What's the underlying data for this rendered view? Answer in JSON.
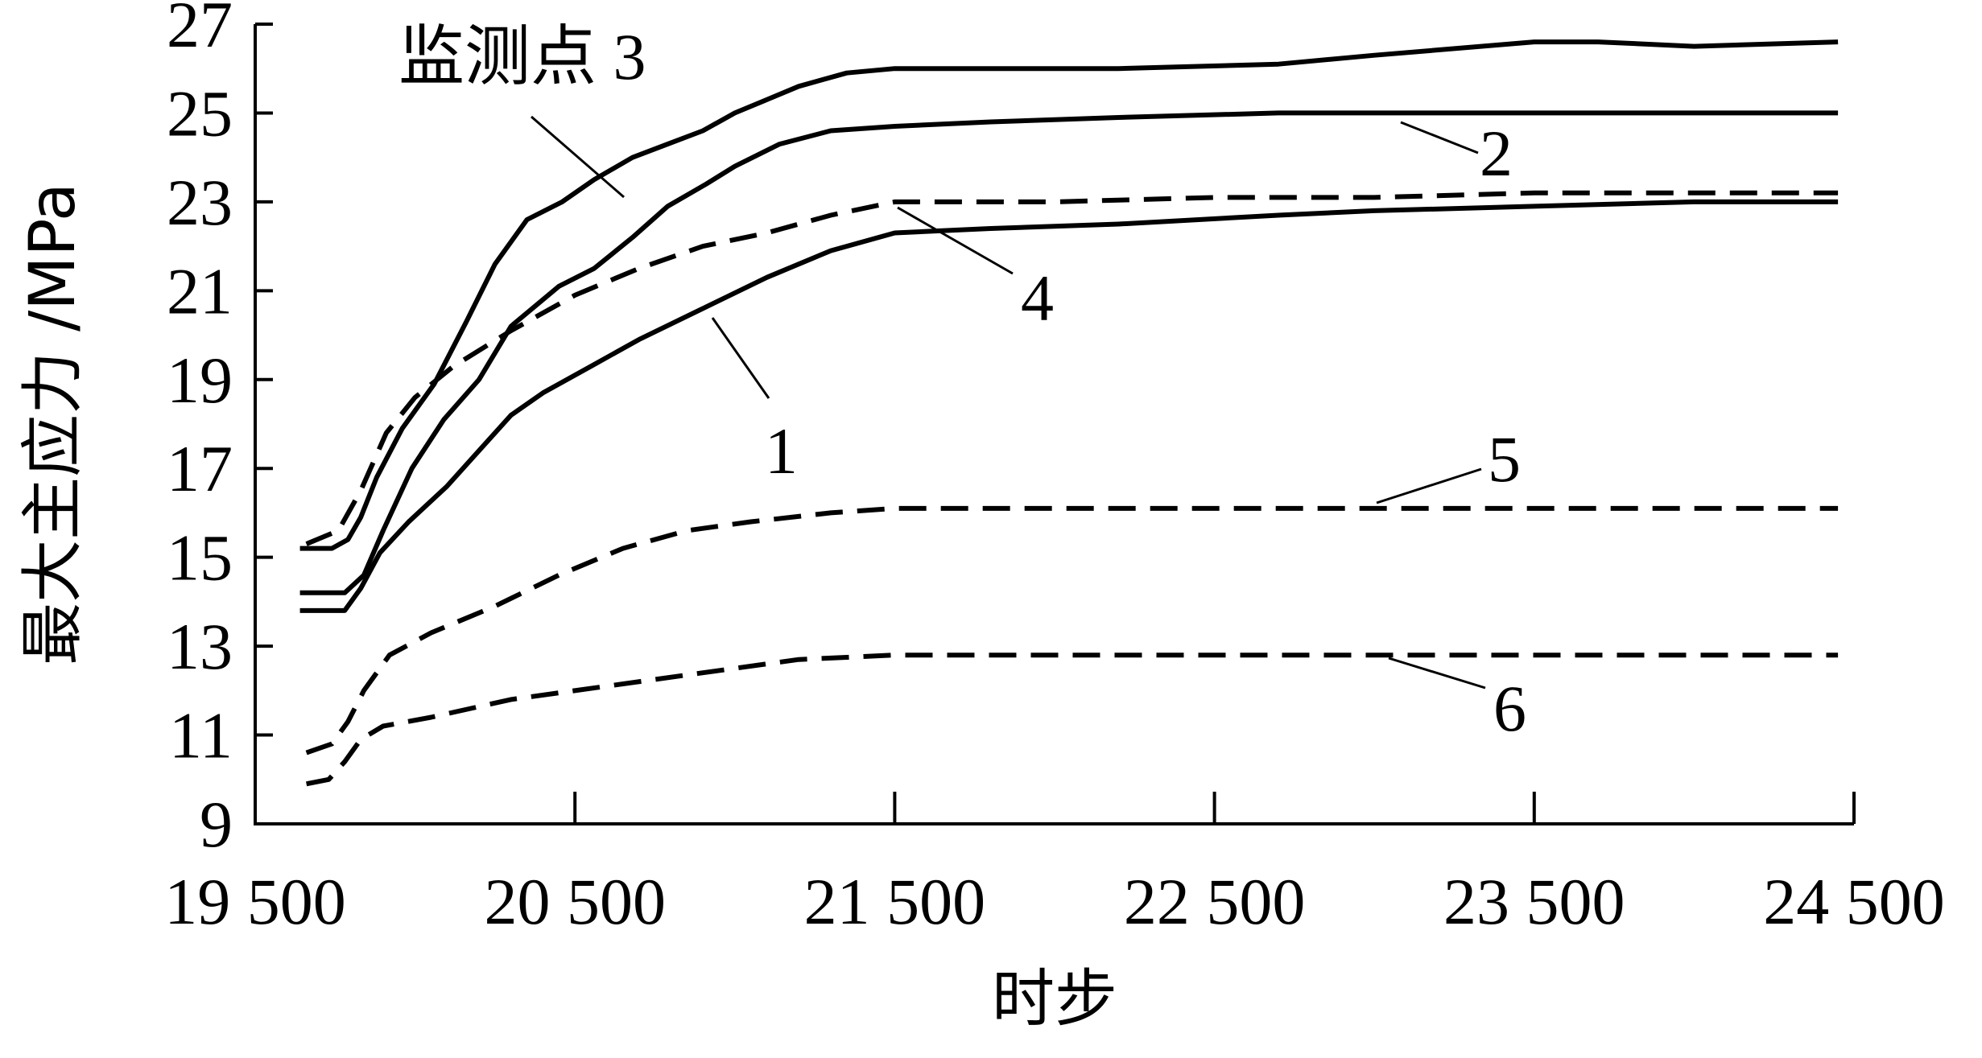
{
  "chart_data": {
    "type": "line",
    "xlabel": "时步",
    "ylabel": "最大主应力 /MPa",
    "xlim": [
      19500,
      24500
    ],
    "ylim": [
      9,
      27
    ],
    "xticks": [
      19500,
      20500,
      21500,
      22500,
      23500,
      24500
    ],
    "xtick_labels": [
      "19 500",
      "20 500",
      "21 500",
      "22 500",
      "23 500",
      "24 500"
    ],
    "yticks": [
      9,
      11,
      13,
      15,
      17,
      19,
      21,
      23,
      25,
      27
    ],
    "ytick_labels": [
      "9",
      "11",
      "13",
      "15",
      "17",
      "19",
      "21",
      "23",
      "25",
      "27"
    ],
    "grid": false,
    "series": [
      {
        "name": "监测点 3",
        "style": "solid",
        "x": [
          19640,
          19740,
          19790,
          19830,
          19880,
          19960,
          20060,
          20160,
          20250,
          20350,
          20460,
          20560,
          20680,
          20790,
          20900,
          21000,
          21100,
          21200,
          21350,
          21500,
          21800,
          22200,
          22700,
          23000,
          23500,
          23700,
          24000,
          24450
        ],
        "y": [
          15.2,
          15.2,
          15.4,
          15.9,
          16.8,
          17.9,
          18.9,
          20.3,
          21.6,
          22.6,
          23.0,
          23.5,
          24.0,
          24.3,
          24.6,
          25.0,
          25.3,
          25.6,
          25.9,
          26.0,
          26.0,
          26.0,
          26.1,
          26.3,
          26.6,
          26.6,
          26.5,
          26.6
        ]
      },
      {
        "name": "2",
        "style": "solid",
        "x": [
          19640,
          19780,
          19840,
          19900,
          19990,
          20090,
          20200,
          20300,
          20450,
          20560,
          20680,
          20790,
          20910,
          21000,
          21140,
          21300,
          21500,
          21800,
          22200,
          22700,
          23000,
          23500,
          24000,
          24450
        ],
        "y": [
          14.2,
          14.2,
          14.6,
          15.6,
          17.0,
          18.1,
          19.0,
          20.2,
          21.1,
          21.5,
          22.2,
          22.9,
          23.4,
          23.8,
          24.3,
          24.6,
          24.7,
          24.8,
          24.9,
          25.0,
          25.0,
          25.0,
          25.0,
          25.0
        ]
      },
      {
        "name": "1",
        "style": "solid",
        "x": [
          19640,
          19780,
          19830,
          19890,
          19980,
          20100,
          20200,
          20300,
          20400,
          20550,
          20700,
          20900,
          21100,
          21300,
          21500,
          21800,
          22200,
          22700,
          23000,
          23500,
          24000,
          24450
        ],
        "y": [
          13.8,
          13.8,
          14.3,
          15.1,
          15.8,
          16.6,
          17.4,
          18.2,
          18.7,
          19.3,
          19.9,
          20.6,
          21.3,
          21.9,
          22.3,
          22.4,
          22.5,
          22.7,
          22.8,
          22.9,
          23.0,
          23.0
        ]
      },
      {
        "name": "4",
        "style": "dashed",
        "x": [
          19660,
          19760,
          19830,
          19910,
          20000,
          20120,
          20300,
          20500,
          20700,
          20900,
          21100,
          21300,
          21500,
          22000,
          22500,
          23000,
          23500,
          24000,
          24450
        ],
        "y": [
          15.3,
          15.6,
          16.5,
          17.8,
          18.6,
          19.3,
          20.1,
          20.9,
          21.5,
          22.0,
          22.3,
          22.7,
          23.0,
          23.0,
          23.1,
          23.1,
          23.2,
          23.2,
          23.2
        ]
      },
      {
        "name": "5",
        "style": "dashed",
        "x": [
          19660,
          19740,
          19790,
          19840,
          19920,
          20050,
          20250,
          20450,
          20650,
          20850,
          21050,
          21300,
          21500,
          22000,
          22500,
          23000,
          23500,
          24000,
          24450
        ],
        "y": [
          10.6,
          10.8,
          11.3,
          12.0,
          12.8,
          13.3,
          13.9,
          14.6,
          15.2,
          15.6,
          15.8,
          16.0,
          16.1,
          16.1,
          16.1,
          16.1,
          16.1,
          16.1,
          16.1
        ]
      },
      {
        "name": "6",
        "style": "dashed",
        "x": [
          19660,
          19730,
          19780,
          19830,
          19900,
          20050,
          20300,
          20600,
          20900,
          21200,
          21500,
          22000,
          22500,
          23000,
          23500,
          24000,
          24450
        ],
        "y": [
          9.9,
          10.0,
          10.4,
          10.9,
          11.2,
          11.4,
          11.8,
          12.1,
          12.4,
          12.7,
          12.8,
          12.8,
          12.8,
          12.8,
          12.8,
          12.8,
          12.8
        ]
      }
    ],
    "annotations": [
      {
        "label": "监测点 3",
        "series": "监测点 3"
      },
      {
        "label": "2",
        "series": "2"
      },
      {
        "label": "4",
        "series": "4"
      },
      {
        "label": "1",
        "series": "1"
      },
      {
        "label": "5",
        "series": "5"
      },
      {
        "label": "6",
        "series": "6"
      }
    ]
  }
}
